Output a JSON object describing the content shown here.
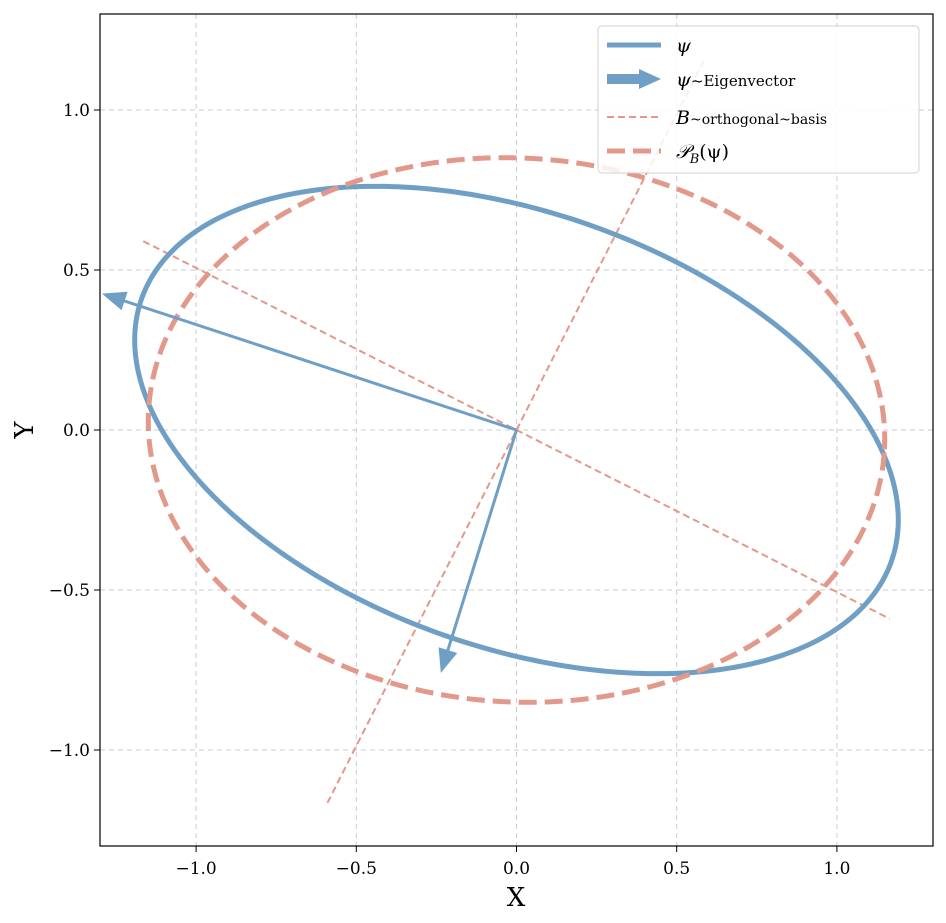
{
  "chart_data": {
    "type": "line",
    "title": "",
    "xlabel": "X",
    "ylabel": "Y",
    "xlim": [
      -1.3,
      1.3
    ],
    "ylim": [
      -1.3,
      1.3
    ],
    "xticks": [
      -1.0,
      -0.5,
      0.0,
      0.5,
      1.0
    ],
    "yticks": [
      -1.0,
      -0.5,
      0.0,
      0.5,
      1.0
    ],
    "xtick_labels": [
      "−1.0",
      "−0.5",
      "0.0",
      "0.5",
      "1.0"
    ],
    "ytick_labels": [
      "−1.0",
      "−0.5",
      "0.0",
      "0.5",
      "1.0"
    ],
    "grid": true,
    "legend_position": "top-right",
    "colors": {
      "psi": "#6f9fc4",
      "projection": "#e2998c",
      "grid": "#cccccc"
    },
    "series": [
      {
        "name": "ψ",
        "kind": "ellipse",
        "center": [
          0,
          0
        ],
        "semi_axes": [
          1.24,
          0.68
        ],
        "angle_deg": -19.3,
        "style": "solid"
      },
      {
        "name": "ψ~Eigenvector",
        "kind": "arrows",
        "origin": [
          0,
          0
        ],
        "vectors": [
          [
            -1.29,
            0.425
          ],
          [
            -0.235,
            -0.755
          ]
        ],
        "style": "arrow"
      },
      {
        "name": "B~orthogonal~basis",
        "kind": "lines",
        "segments": [
          [
            [
              -1.165,
              0.59
            ],
            [
              1.165,
              -0.59
            ]
          ],
          [
            [
              -0.59,
              -1.165
            ],
            [
              0.59,
              1.165
            ]
          ]
        ],
        "style": "dashed-thin"
      },
      {
        "name": "P_B(ψ)",
        "kind": "ellipse",
        "center": [
          0,
          0
        ],
        "semi_axes": [
          1.15,
          0.85
        ],
        "angle_deg": -3,
        "style": "dashed-thick"
      }
    ]
  },
  "legend": {
    "items": [
      {
        "symbol": "ψ",
        "suffix": ""
      },
      {
        "symbol": "ψ",
        "suffix": "~Eigenvector"
      },
      {
        "symbol": "B",
        "suffix": "~orthogonal~basis"
      },
      {
        "symbol": "𝒫",
        "sub": "B",
        "paren": "(ψ)"
      }
    ]
  }
}
